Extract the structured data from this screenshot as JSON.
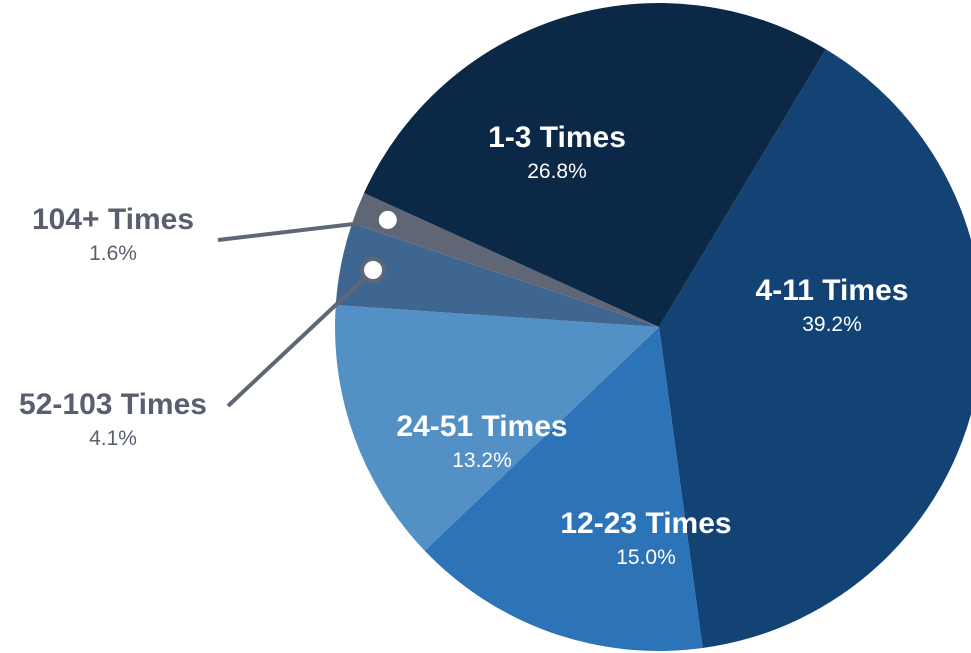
{
  "chart_data": {
    "type": "pie",
    "slices": [
      {
        "label": "4-11 Times",
        "value": 39.2,
        "value_label": "39.2%",
        "color": "#134375"
      },
      {
        "label": "12-23 Times",
        "value": 15.0,
        "value_label": "15.0%",
        "color": "#2d73b8"
      },
      {
        "label": "24-51 Times",
        "value": 13.2,
        "value_label": "13.2%",
        "color": "#5390c5"
      },
      {
        "label": "52-103 Times",
        "value": 4.1,
        "value_label": "4.1%",
        "color": "#3e6690"
      },
      {
        "label": "104+ Times",
        "value": 1.6,
        "value_label": "1.6%",
        "color": "#5f6676"
      },
      {
        "label": "1-3 Times",
        "value": 26.8,
        "value_label": "26.8%",
        "color": "#0b2847"
      }
    ],
    "start_angle_deg": 0,
    "direction": "clockwise",
    "label_colors": {
      "inside": "#ffffff",
      "outside": "#5a5f6f"
    },
    "callout_color": "#5f6676"
  }
}
